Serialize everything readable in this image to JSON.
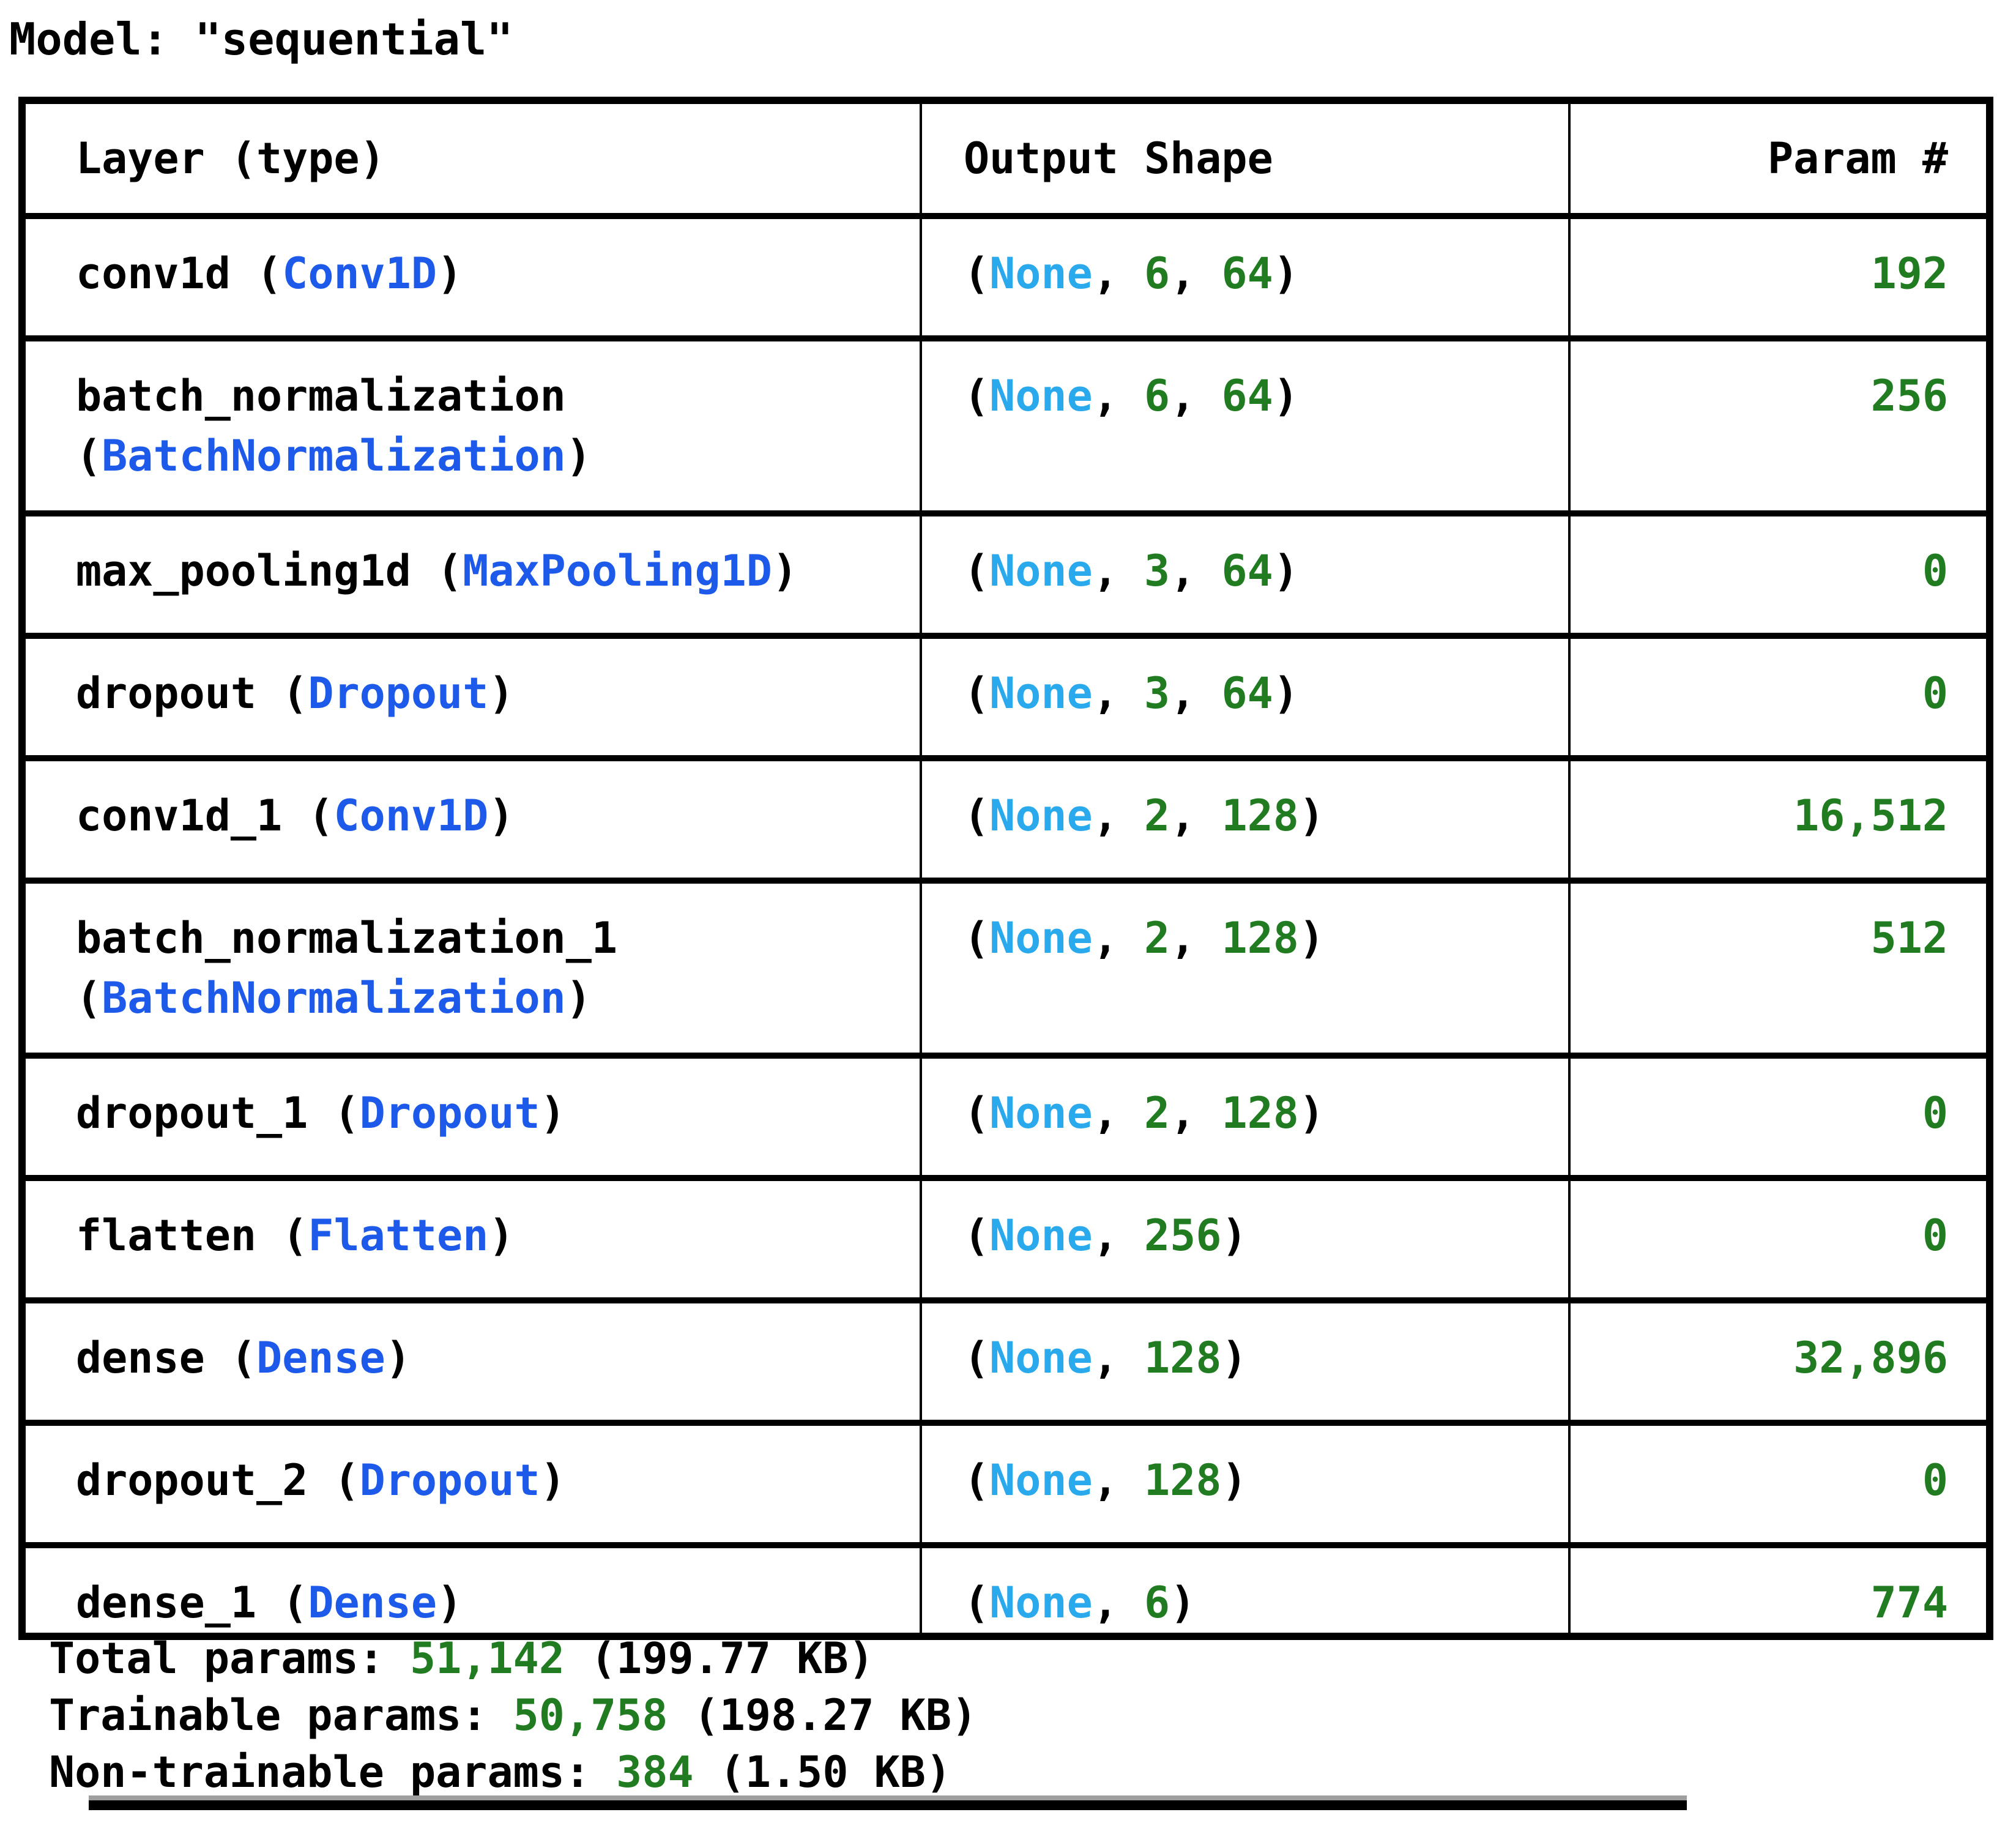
{
  "title": "Model: \"sequential\"",
  "colors": {
    "layer_type_blue": "#1e5aea",
    "none_blue": "#2aa9ec",
    "number_green": "#217c21",
    "text_black": "#000000",
    "border_black": "#000000",
    "scrollbar_gray": "#9e9e9e"
  },
  "table": {
    "headers": [
      "Layer (type)",
      "Output Shape",
      "Param #"
    ],
    "none_label": "None",
    "punct": {
      "open": "(",
      "close": ")",
      "sep": ", ",
      "space": " "
    },
    "rows": [
      {
        "name": "conv1d",
        "type": "Conv1D",
        "wrap": false,
        "dims": [
          "6",
          "64"
        ],
        "param": "192"
      },
      {
        "name": "batch_normalization",
        "type": "BatchNormalization",
        "wrap": true,
        "dims": [
          "6",
          "64"
        ],
        "param": "256"
      },
      {
        "name": "max_pooling1d",
        "type": "MaxPooling1D",
        "wrap": false,
        "dims": [
          "3",
          "64"
        ],
        "param": "0"
      },
      {
        "name": "dropout",
        "type": "Dropout",
        "wrap": false,
        "dims": [
          "3",
          "64"
        ],
        "param": "0"
      },
      {
        "name": "conv1d_1",
        "type": "Conv1D",
        "wrap": false,
        "dims": [
          "2",
          "128"
        ],
        "param": "16,512"
      },
      {
        "name": "batch_normalization_1",
        "type": "BatchNormalization",
        "wrap": true,
        "dims": [
          "2",
          "128"
        ],
        "param": "512"
      },
      {
        "name": "dropout_1",
        "type": "Dropout",
        "wrap": false,
        "dims": [
          "2",
          "128"
        ],
        "param": "0"
      },
      {
        "name": "flatten",
        "type": "Flatten",
        "wrap": false,
        "dims": [
          "256"
        ],
        "param": "0"
      },
      {
        "name": "dense",
        "type": "Dense",
        "wrap": false,
        "dims": [
          "128"
        ],
        "param": "32,896"
      },
      {
        "name": "dropout_2",
        "type": "Dropout",
        "wrap": false,
        "dims": [
          "128"
        ],
        "param": "0"
      },
      {
        "name": "dense_1",
        "type": "Dense",
        "wrap": false,
        "dims": [
          "6"
        ],
        "param": "774",
        "last": true
      }
    ]
  },
  "summary": [
    {
      "label": "Total params:",
      "value": "51,142",
      "size": "(199.77 KB)"
    },
    {
      "label": "Trainable params:",
      "value": "50,758",
      "size": "(198.27 KB)"
    },
    {
      "label": "Non-trainable params:",
      "value": "384",
      "size": "(1.50 KB)"
    }
  ]
}
